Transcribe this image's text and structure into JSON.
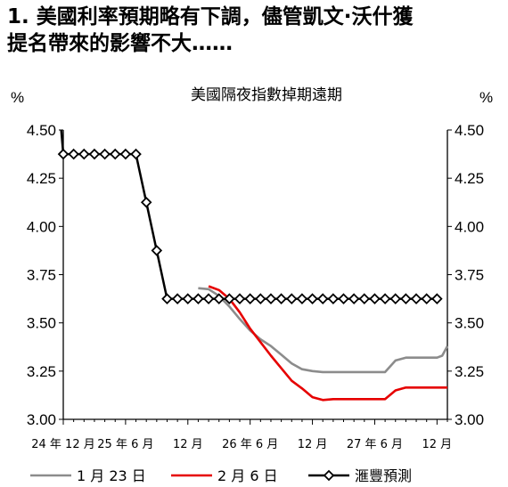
{
  "header": {
    "title_line1": "1. 美國利率預期略有下調，儘管凱文·沃什獲",
    "title_line2": "提名帶來的影響不大……"
  },
  "chart_data": {
    "type": "line",
    "title": "美國隔夜指數掉期遠期",
    "ylabel_left": "%",
    "ylabel_right": "%",
    "ylim": [
      3.0,
      4.5
    ],
    "yticks": [
      "4.50",
      "4.25",
      "4.00",
      "3.75",
      "3.50",
      "3.25",
      "3.00"
    ],
    "xlim": [
      0,
      37
    ],
    "xticks": [
      {
        "x": 0,
        "label": "24 年 12 月"
      },
      {
        "x": 6,
        "label": "25 年 6 月"
      },
      {
        "x": 12,
        "label": "12 月"
      },
      {
        "x": 18,
        "label": "26 年 6 月"
      },
      {
        "x": 24,
        "label": "12 月"
      },
      {
        "x": 30,
        "label": "27 年 6 月"
      },
      {
        "x": 36,
        "label": "12 月"
      }
    ],
    "series": [
      {
        "name": "1 月 23 日",
        "color": "#8c8c8c",
        "points": [
          [
            13,
            3.68
          ],
          [
            14,
            3.675
          ],
          [
            15,
            3.64
          ],
          [
            16,
            3.585
          ],
          [
            17,
            3.52
          ],
          [
            18,
            3.46
          ],
          [
            19,
            3.415
          ],
          [
            20,
            3.38
          ],
          [
            21,
            3.335
          ],
          [
            22,
            3.29
          ],
          [
            23,
            3.26
          ],
          [
            24,
            3.25
          ],
          [
            25,
            3.245
          ],
          [
            26,
            3.245
          ],
          [
            27,
            3.245
          ],
          [
            28,
            3.245
          ],
          [
            29,
            3.245
          ],
          [
            30,
            3.245
          ],
          [
            31,
            3.245
          ],
          [
            32,
            3.305
          ],
          [
            33,
            3.32
          ],
          [
            34,
            3.32
          ],
          [
            35,
            3.32
          ],
          [
            36,
            3.32
          ],
          [
            36.5,
            3.33
          ],
          [
            37,
            3.38
          ]
        ]
      },
      {
        "name": "2 月 6 日",
        "color": "#e60000",
        "points": [
          [
            14,
            3.69
          ],
          [
            15,
            3.67
          ],
          [
            16,
            3.625
          ],
          [
            17,
            3.555
          ],
          [
            18,
            3.47
          ],
          [
            19,
            3.4
          ],
          [
            20,
            3.33
          ],
          [
            21,
            3.265
          ],
          [
            22,
            3.2
          ],
          [
            23,
            3.16
          ],
          [
            24,
            3.115
          ],
          [
            25,
            3.1
          ],
          [
            26,
            3.105
          ],
          [
            27,
            3.105
          ],
          [
            28,
            3.105
          ],
          [
            29,
            3.105
          ],
          [
            30,
            3.105
          ],
          [
            31,
            3.105
          ],
          [
            32,
            3.15
          ],
          [
            33,
            3.165
          ],
          [
            34,
            3.165
          ],
          [
            35,
            3.165
          ],
          [
            36,
            3.165
          ],
          [
            37,
            3.165
          ]
        ]
      },
      {
        "name": "滙豐預測",
        "color": "#000000",
        "marker": "diamond",
        "points": [
          [
            0,
            4.375
          ],
          [
            1,
            4.375
          ],
          [
            2,
            4.375
          ],
          [
            3,
            4.375
          ],
          [
            4,
            4.375
          ],
          [
            5,
            4.375
          ],
          [
            6,
            4.375
          ],
          [
            7,
            4.375
          ],
          [
            8,
            4.125
          ],
          [
            9,
            3.875
          ],
          [
            10,
            3.625
          ],
          [
            11,
            3.625
          ],
          [
            12,
            3.625
          ],
          [
            13,
            3.625
          ],
          [
            14,
            3.625
          ],
          [
            15,
            3.625
          ],
          [
            16,
            3.625
          ],
          [
            17,
            3.625
          ],
          [
            18,
            3.625
          ],
          [
            19,
            3.625
          ],
          [
            20,
            3.625
          ],
          [
            21,
            3.625
          ],
          [
            22,
            3.625
          ],
          [
            23,
            3.625
          ],
          [
            24,
            3.625
          ],
          [
            25,
            3.625
          ],
          [
            26,
            3.625
          ],
          [
            27,
            3.625
          ],
          [
            28,
            3.625
          ],
          [
            29,
            3.625
          ],
          [
            30,
            3.625
          ],
          [
            31,
            3.625
          ],
          [
            32,
            3.625
          ],
          [
            33,
            3.625
          ],
          [
            34,
            3.625
          ],
          [
            35,
            3.625
          ],
          [
            36,
            3.625
          ]
        ],
        "lead_in": [
          [
            -0.2,
            4.5
          ],
          [
            0,
            4.375
          ]
        ]
      }
    ],
    "grid": false,
    "legend_position": "bottom"
  }
}
